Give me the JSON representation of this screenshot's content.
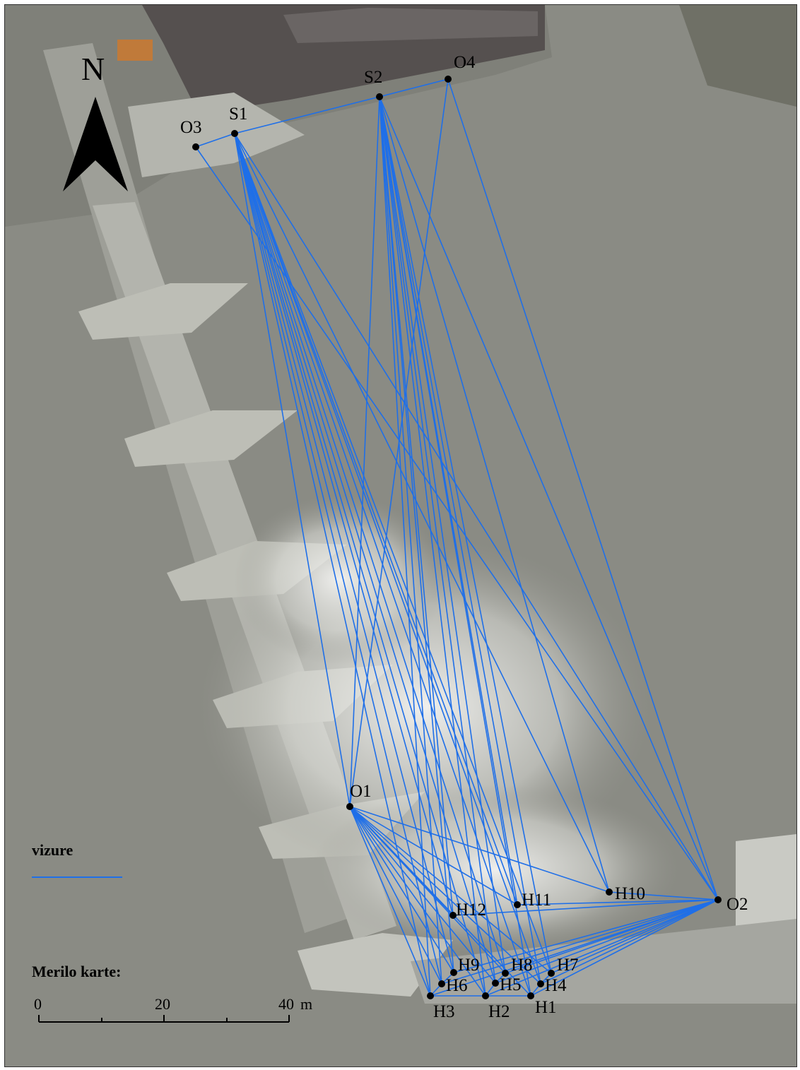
{
  "map": {
    "north_label": "N",
    "legend": {
      "title": "vizure",
      "line_color": "#1f6fe8"
    },
    "scale": {
      "title": "Merilo karte:",
      "ticks": [
        "0",
        "20",
        "40"
      ],
      "unit": "m"
    }
  },
  "colors": {
    "sightline": "#1f6fe8",
    "point": "#000000",
    "water": "#8a8b84",
    "dam": "#a8a8a2",
    "buildings": "#5c5658"
  },
  "points": [
    {
      "id": "O3",
      "label": "O3"
    },
    {
      "id": "S1",
      "label": "S1"
    },
    {
      "id": "S2",
      "label": "S2"
    },
    {
      "id": "O4",
      "label": "O4"
    },
    {
      "id": "O1",
      "label": "O1"
    },
    {
      "id": "O2",
      "label": "O2"
    },
    {
      "id": "H10",
      "label": "H10"
    },
    {
      "id": "H11",
      "label": "H11"
    },
    {
      "id": "H12",
      "label": "H12"
    },
    {
      "id": "H9",
      "label": "H9"
    },
    {
      "id": "H8",
      "label": "H8"
    },
    {
      "id": "H7",
      "label": "H7"
    },
    {
      "id": "H6",
      "label": "H6"
    },
    {
      "id": "H5",
      "label": "H5"
    },
    {
      "id": "H4",
      "label": "H4"
    },
    {
      "id": "H3",
      "label": "H3"
    },
    {
      "id": "H2",
      "label": "H2"
    },
    {
      "id": "H1",
      "label": "H1"
    }
  ]
}
